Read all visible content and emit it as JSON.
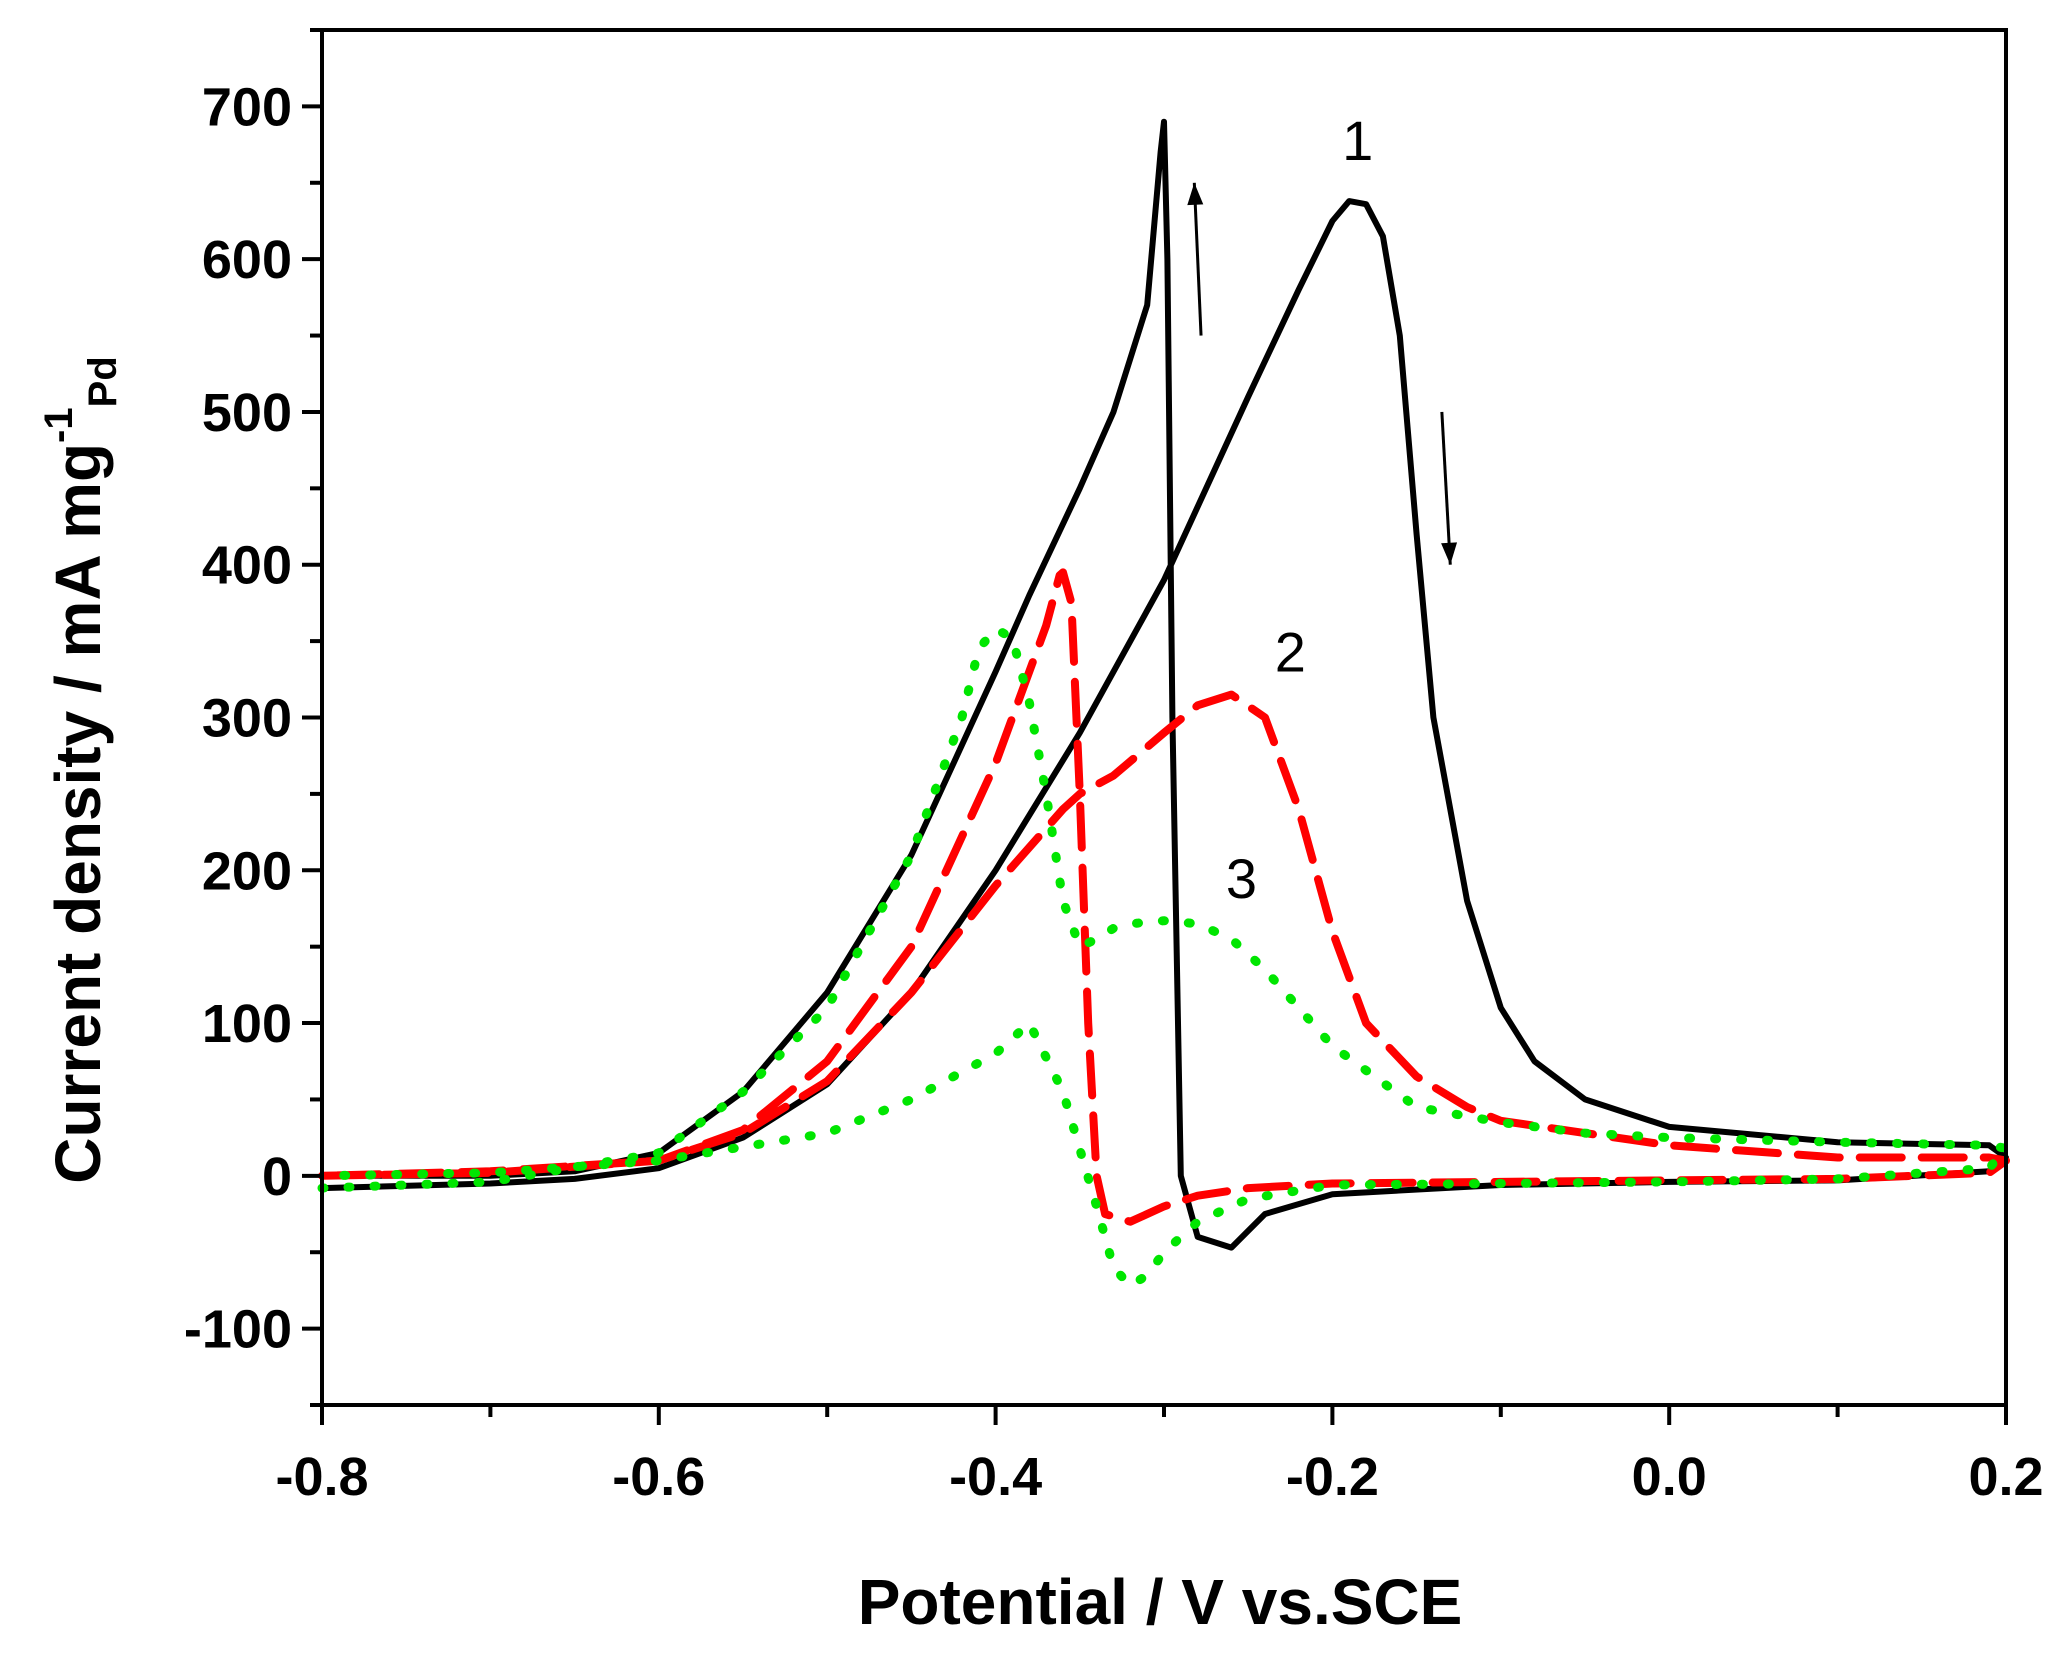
{
  "chart_data": {
    "type": "line",
    "title": "",
    "xlabel": "Potential / V vs.SCE",
    "ylabel": {
      "main": "Current density / mA mg",
      "superscript": "-1",
      "subscript": "Pd"
    },
    "xlim": [
      -0.8,
      0.2
    ],
    "ylim": [
      -150,
      750
    ],
    "xticks": [
      -0.8,
      -0.6,
      -0.4,
      -0.2,
      0.0,
      0.2
    ],
    "xtick_labels": [
      "-0.8",
      "-0.6",
      "-0.4",
      "-0.2",
      "0.0",
      "0.2"
    ],
    "yticks": [
      -100,
      0,
      100,
      200,
      300,
      400,
      500,
      600,
      700
    ],
    "ytick_labels": [
      "-100",
      "0",
      "100",
      "200",
      "300",
      "400",
      "500",
      "600",
      "700"
    ],
    "grid": false,
    "annotations": [
      {
        "text": "1",
        "x": -0.185,
        "y": 665
      },
      {
        "text": "2",
        "x": -0.225,
        "y": 330
      },
      {
        "text": "3",
        "x": -0.254,
        "y": 182
      }
    ],
    "arrows": [
      {
        "direction": "up",
        "from": [
          -0.278,
          550
        ],
        "to": [
          -0.282,
          650
        ]
      },
      {
        "direction": "down",
        "from": [
          -0.135,
          500
        ],
        "to": [
          -0.13,
          400
        ]
      }
    ],
    "series": [
      {
        "name": "1",
        "style": "solid",
        "color": "#000000",
        "x": [
          -0.8,
          -0.7,
          -0.65,
          -0.6,
          -0.55,
          -0.5,
          -0.45,
          -0.4,
          -0.35,
          -0.3,
          -0.25,
          -0.22,
          -0.2,
          -0.19,
          -0.18,
          -0.17,
          -0.16,
          -0.15,
          -0.14,
          -0.12,
          -0.1,
          -0.08,
          -0.05,
          0.0,
          0.1,
          0.19,
          0.2,
          0.19,
          0.1,
          0.0,
          -0.1,
          -0.2,
          -0.24,
          -0.26,
          -0.28,
          -0.29,
          -0.295,
          -0.298,
          -0.3,
          -0.302,
          -0.31,
          -0.33,
          -0.35,
          -0.38,
          -0.4,
          -0.45,
          -0.5,
          -0.55,
          -0.6,
          -0.65,
          -0.7,
          -0.8
        ],
        "y": [
          -8,
          -5,
          -2,
          5,
          25,
          60,
          120,
          200,
          290,
          390,
          510,
          580,
          625,
          638,
          636,
          615,
          550,
          420,
          300,
          180,
          110,
          75,
          50,
          32,
          22,
          20,
          12,
          3,
          -3,
          -4,
          -6,
          -12,
          -25,
          -47,
          -40,
          0,
          300,
          600,
          690,
          670,
          570,
          500,
          450,
          380,
          330,
          210,
          120,
          55,
          15,
          3,
          0,
          0
        ]
      },
      {
        "name": "2",
        "style": "dashed",
        "color": "#ff0000",
        "x": [
          -0.8,
          -0.7,
          -0.6,
          -0.55,
          -0.5,
          -0.45,
          -0.4,
          -0.36,
          -0.35,
          -0.33,
          -0.3,
          -0.28,
          -0.26,
          -0.24,
          -0.22,
          -0.2,
          -0.18,
          -0.15,
          -0.12,
          -0.1,
          -0.05,
          0.0,
          0.1,
          0.19,
          0.2,
          0.19,
          0.1,
          0.0,
          -0.1,
          -0.2,
          -0.25,
          -0.28,
          -0.3,
          -0.32,
          -0.335,
          -0.34,
          -0.345,
          -0.35,
          -0.355,
          -0.36,
          -0.362,
          -0.37,
          -0.4,
          -0.45,
          -0.5,
          -0.55,
          -0.6,
          -0.7,
          -0.8
        ],
        "y": [
          0,
          2,
          10,
          28,
          62,
          120,
          190,
          240,
          250,
          262,
          290,
          308,
          315,
          300,
          240,
          160,
          100,
          65,
          45,
          36,
          28,
          20,
          12,
          12,
          10,
          2,
          -2,
          -3,
          -4,
          -5,
          -8,
          -13,
          -20,
          -30,
          -25,
          0,
          100,
          250,
          375,
          395,
          393,
          360,
          270,
          150,
          75,
          30,
          10,
          3,
          0
        ]
      },
      {
        "name": "3",
        "style": "dotted",
        "color": "#00e600",
        "x": [
          -0.8,
          -0.7,
          -0.6,
          -0.55,
          -0.5,
          -0.45,
          -0.42,
          -0.41,
          -0.4,
          -0.39,
          -0.38,
          -0.37,
          -0.36,
          -0.35,
          -0.34,
          -0.33,
          -0.32,
          -0.3,
          -0.28,
          -0.26,
          -0.24,
          -0.22,
          -0.2,
          -0.15,
          -0.1,
          -0.05,
          0.0,
          0.1,
          0.19,
          0.2,
          0.19,
          0.1,
          0.0,
          -0.1,
          -0.2,
          -0.25,
          -0.28,
          -0.3,
          -0.31,
          -0.32,
          -0.33,
          -0.34,
          -0.36,
          -0.38,
          -0.4,
          -0.45,
          -0.5,
          -0.6,
          -0.7,
          -0.8
        ],
        "y": [
          -8,
          -4,
          15,
          55,
          110,
          210,
          300,
          345,
          358,
          352,
          310,
          250,
          180,
          150,
          155,
          162,
          165,
          167,
          165,
          155,
          135,
          110,
          85,
          45,
          35,
          28,
          25,
          22,
          20,
          18,
          5,
          -2,
          -4,
          -5,
          -6,
          -15,
          -30,
          -50,
          -65,
          -72,
          -60,
          -20,
          55,
          100,
          80,
          50,
          28,
          10,
          2,
          0
        ]
      }
    ]
  }
}
